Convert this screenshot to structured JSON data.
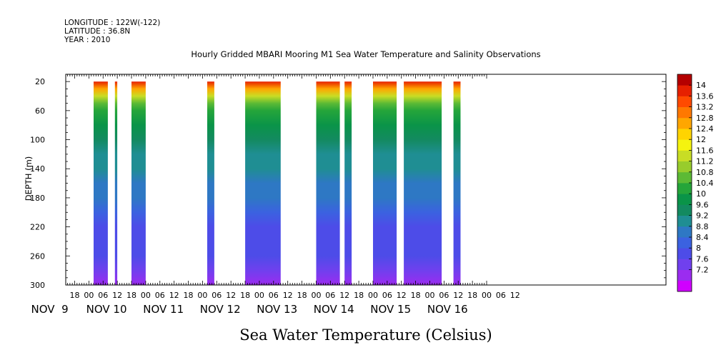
{
  "header": {
    "longitude": "LONGITUDE : 122W(-122)",
    "latitude": "LATITUDE : 36.8N",
    "year": "YEAR : 2010"
  },
  "chart_data": {
    "type": "heatmap",
    "title": "Hourly Gridded MBARI Mooring M1 Sea Water Temperature and Salinity Observations",
    "xlabel": "",
    "ylabel": "DEPTH (m)",
    "bottom_label": "Sea Water Temperature (Celsius)",
    "x_hour_ticks": [
      "18",
      "00",
      "06",
      "12",
      "18",
      "00",
      "06",
      "12",
      "18",
      "00",
      "06",
      "12",
      "18",
      "00",
      "06",
      "12",
      "18",
      "00",
      "06",
      "12",
      "18",
      "00",
      "06",
      "12",
      "18",
      "00",
      "06",
      "12",
      "18",
      "00",
      "06",
      "12"
    ],
    "x_day_labels": [
      "NOV  9",
      "NOV 10",
      "NOV 11",
      "NOV 12",
      "NOV 13",
      "NOV 14",
      "NOV 15",
      "NOV 16"
    ],
    "y_ticks": [
      20,
      60,
      100,
      140,
      180,
      220,
      260,
      300
    ],
    "ylim": [
      300,
      10
    ],
    "depth_profile_c": [
      {
        "depth": 20,
        "temp": 13.8
      },
      {
        "depth": 30,
        "temp": 12.6
      },
      {
        "depth": 40,
        "temp": 11.4
      },
      {
        "depth": 50,
        "temp": 10.8
      },
      {
        "depth": 60,
        "temp": 10.4
      },
      {
        "depth": 80,
        "temp": 10.0
      },
      {
        "depth": 100,
        "temp": 9.6
      },
      {
        "depth": 120,
        "temp": 9.3
      },
      {
        "depth": 140,
        "temp": 9.2
      },
      {
        "depth": 160,
        "temp": 9.0
      },
      {
        "depth": 180,
        "temp": 8.8
      },
      {
        "depth": 200,
        "temp": 8.6
      },
      {
        "depth": 220,
        "temp": 8.4
      },
      {
        "depth": 240,
        "temp": 8.3
      },
      {
        "depth": 260,
        "temp": 8.1
      },
      {
        "depth": 280,
        "temp": 7.8
      },
      {
        "depth": 300,
        "temp": 7.4
      }
    ],
    "data_segments": [
      {
        "start": "NOV 10 02:00",
        "end": "NOV 10 08:00"
      },
      {
        "start": "NOV 10 11:00",
        "end": "NOV 10 12:00"
      },
      {
        "start": "NOV 10 18:00",
        "end": "NOV 11 00:00"
      },
      {
        "start": "NOV 12 02:00",
        "end": "NOV 12 05:00"
      },
      {
        "start": "NOV 12 18:00",
        "end": "NOV 13 09:00"
      },
      {
        "start": "NOV 14 00:00",
        "end": "NOV 14 10:00"
      },
      {
        "start": "NOV 14 12:00",
        "end": "NOV 14 15:00"
      },
      {
        "start": "NOV 15 00:00",
        "end": "NOV 15 10:00"
      },
      {
        "start": "NOV 15 13:00",
        "end": "NOV 16 05:00"
      },
      {
        "start": "NOV 16 10:00",
        "end": "NOV 16 13:00"
      }
    ],
    "colorbar_levels": [
      "14",
      "13.6",
      "13.2",
      "12.8",
      "12.4",
      "12",
      "11.6",
      "11.2",
      "10.8",
      "10.4",
      "10",
      "9.6",
      "9.2",
      "8.8",
      "8.4",
      "8",
      "7.6",
      "7.2"
    ],
    "colormap": [
      "#d000ff",
      "#9b2cf0",
      "#7040ee",
      "#4d4ce8",
      "#3b62e0",
      "#2e78c4",
      "#1f8e93",
      "#138a60",
      "#0a9448",
      "#25a53a",
      "#5cba35",
      "#98cc2c",
      "#c8dd25",
      "#f5f30f",
      "#ffd400",
      "#ffa600",
      "#ff7800",
      "#ff4a00",
      "#e62000",
      "#b40000"
    ]
  }
}
